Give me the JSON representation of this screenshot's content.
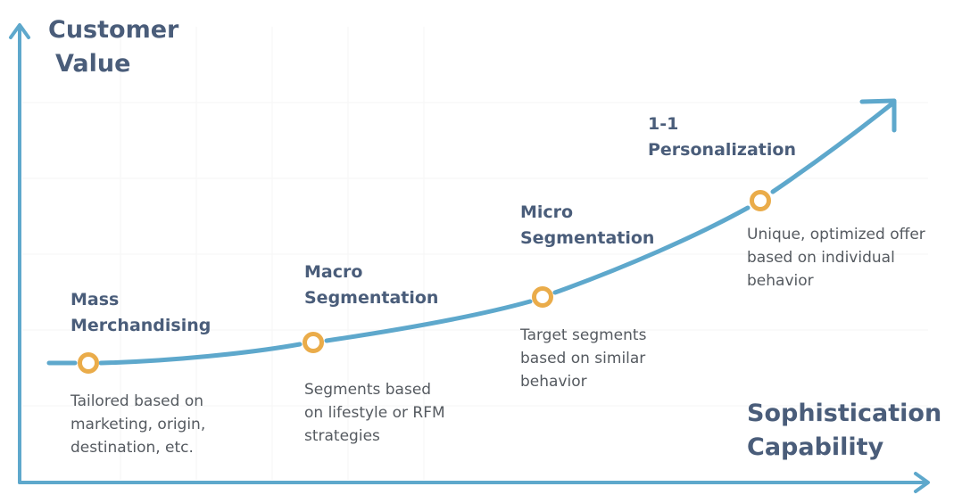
{
  "colors": {
    "axis": "#5ea8cc",
    "curve": "#5ea8cc",
    "marker": "#eaac4a",
    "title_text": "#4a5d7a",
    "desc_text": "#555a60",
    "grid": "#f5f5f5"
  },
  "y_axis": {
    "title_line1": "Customer",
    "title_line2": "Value"
  },
  "x_axis": {
    "title_line1": "Sophistication",
    "title_line2": "Capability"
  },
  "stages": [
    {
      "title_lines": [
        "Mass",
        "Merchandising"
      ],
      "desc_lines": [
        "Tailored based on",
        "marketing, origin,",
        "destination, etc."
      ]
    },
    {
      "title_lines": [
        "Macro",
        "Segmentation"
      ],
      "desc_lines": [
        "Segments based",
        "on lifestyle or RFM",
        "strategies"
      ]
    },
    {
      "title_lines": [
        "Micro",
        "Segmentation"
      ],
      "desc_lines": [
        "Target segments",
        "based on similar",
        "behavior"
      ]
    },
    {
      "title_lines": [
        "1-1",
        "Personalization"
      ],
      "desc_lines": [
        "Unique, optimized offer",
        "based on individual",
        "behavior"
      ]
    }
  ]
}
